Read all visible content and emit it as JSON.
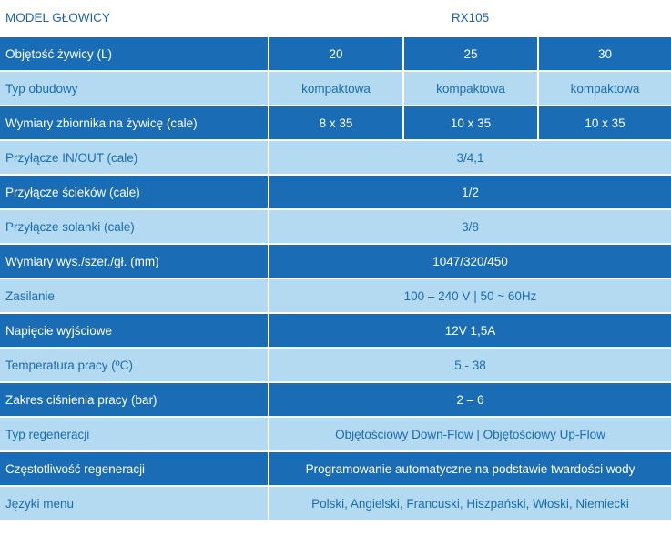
{
  "header": {
    "label": "MODEL GŁOWICY",
    "value": "RX105"
  },
  "rows": [
    {
      "label": "Objętość żywicy (L)",
      "values": [
        "20",
        "25",
        "30"
      ]
    },
    {
      "label": "Typ obudowy",
      "values": [
        "kompaktowa",
        "kompaktowa",
        "kompaktowa"
      ]
    },
    {
      "label": "Wymiary zbiornika na żywicę (cale)",
      "values": [
        "8 x 35",
        "10 x 35",
        "10 x 35"
      ]
    },
    {
      "label": "Przyłącze IN/OUT (cale)",
      "values": [
        "3/4,1"
      ]
    },
    {
      "label": "Przyłącze ścieków (cale)",
      "values": [
        "1/2"
      ]
    },
    {
      "label": "Przyłącze solanki (cale)",
      "values": [
        "3/8"
      ]
    },
    {
      "label": "Wymiary wys./szer./gł. (mm)",
      "values": [
        "1047/320/450"
      ]
    },
    {
      "label": "Zasilanie",
      "values": [
        "100 – 240 V | 50 ~ 60Hz"
      ]
    },
    {
      "label": "Napięcie wyjściowe",
      "values": [
        "12V 1,5A"
      ]
    },
    {
      "label": "Temperatura pracy (ºC)",
      "values": [
        "5 - 38"
      ]
    },
    {
      "label": "Zakres ciśnienia pracy (bar)",
      "values": [
        "2 – 6"
      ]
    },
    {
      "label": "Typ regeneracji",
      "values": [
        "Objętościowy Down-Flow | Objętościowy Up-Flow"
      ]
    },
    {
      "label": "Częstotliwość regeneracji",
      "values": [
        "Programowanie automatyczne na podstawie twardości wody"
      ]
    },
    {
      "label": "Języki menu",
      "values": [
        "Polski, Angielski, Francuski, Hiszpański, Włoski, Niemiecki"
      ]
    }
  ],
  "colors": {
    "dark_row": "#1a6cb4",
    "light_row": "#b3daf0",
    "header_text": "#1b63ad"
  }
}
